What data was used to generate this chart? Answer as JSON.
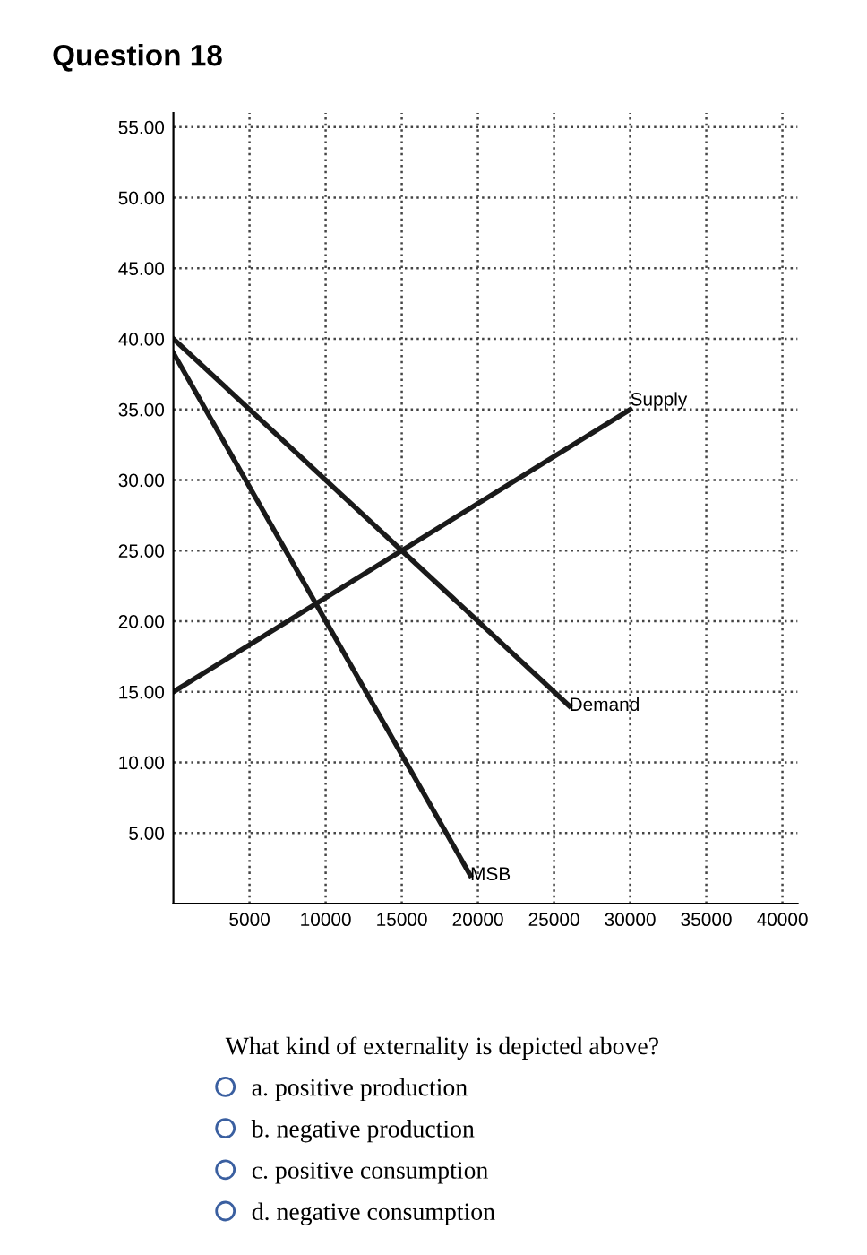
{
  "chart_data": {
    "type": "line",
    "title": "Question 18",
    "series": [
      {
        "name": "Supply",
        "color": "#1a1a1a",
        "x": [
          0,
          30000
        ],
        "values": [
          15,
          35
        ]
      },
      {
        "name": "Demand",
        "color": "#1a1a1a",
        "x": [
          0,
          26000
        ],
        "values": [
          40,
          14
        ]
      },
      {
        "name": "MSB",
        "color": "#1a1a1a",
        "x": [
          0,
          19500
        ],
        "values": [
          39,
          2
        ]
      }
    ],
    "xlim": [
      0,
      41000
    ],
    "xticks": [
      5000,
      10000,
      15000,
      20000,
      25000,
      30000,
      35000,
      40000
    ],
    "ylim": [
      0,
      56
    ],
    "yticks": [
      {
        "value": 5,
        "label": "5.00"
      },
      {
        "value": 10,
        "label": "10.00"
      },
      {
        "value": 15,
        "label": "15.00"
      },
      {
        "value": 20,
        "label": "20.00"
      },
      {
        "value": 25,
        "label": "25.00"
      },
      {
        "value": 30,
        "label": "30.00"
      },
      {
        "value": 35,
        "label": "35.00"
      },
      {
        "value": 40,
        "label": "40.00"
      },
      {
        "value": 45,
        "label": "45.00"
      },
      {
        "value": 50,
        "label": "50.00"
      },
      {
        "value": 55,
        "label": "55.00"
      }
    ],
    "grid": true,
    "line_style": "solid",
    "marker": "none",
    "annotations": [
      "What kind of externality is depicted above?",
      "a. positive production",
      "b. negative production",
      "c. positive consumption",
      "d. negative consumption"
    ]
  }
}
